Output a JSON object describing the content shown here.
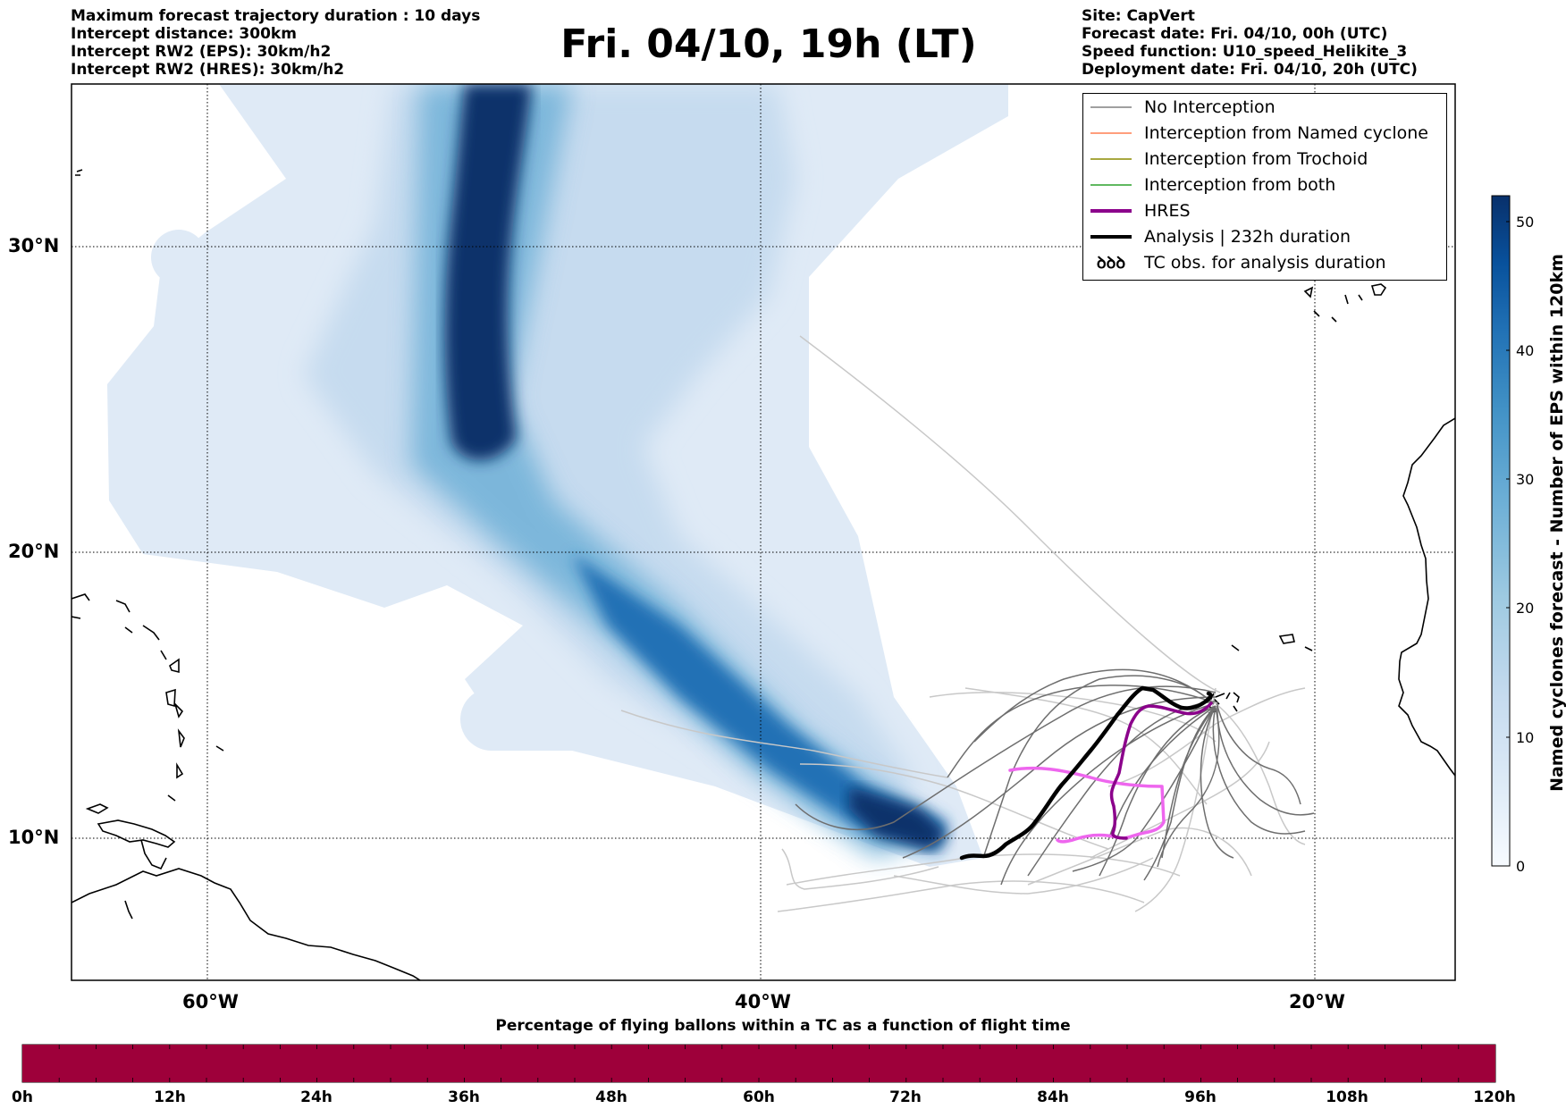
{
  "header_left": [
    "Maximum forecast trajectory duration : 10 days",
    "Intercept distance: 300km",
    "Intercept RW2 (EPS):  30km/h2",
    "Intercept RW2 (HRES): 30km/h2"
  ],
  "title": "Fri. 04/10, 19h (LT)",
  "header_right": [
    "Site: CapVert",
    "Forecast date: Fri. 04/10, 00h (UTC)",
    "Speed function: U10_speed_Helikite_3",
    "Deployment date: Fri. 04/10, 20h (UTC)"
  ],
  "legend": [
    {
      "label": "No Interception",
      "color": "#808080",
      "style": "thin"
    },
    {
      "label": "Interception from Named cyclone",
      "color": "#ff7f50",
      "style": "thin"
    },
    {
      "label": "Interception from Trochoid",
      "color": "#8b8b00",
      "style": "thin"
    },
    {
      "label": "Interception from both",
      "color": "#2ca02c",
      "style": "thin"
    },
    {
      "label": "HRES",
      "color": "#8b008b",
      "style": "thick"
    },
    {
      "label": "Analysis | 232h duration",
      "color": "#000000",
      "style": "thick"
    },
    {
      "label": "TC obs. for analysis duration",
      "color": "#000000",
      "style": "symbol",
      "symbol": "ꝺꝺꝺ"
    }
  ],
  "map": {
    "lat_labels": [
      "30°N",
      "20°N",
      "10°N"
    ],
    "lon_labels": [
      "60°W",
      "40°W",
      "20°W"
    ]
  },
  "colorbar": {
    "label": "Named cyclones forecast - Number of EPS within 120km",
    "ticks": [
      "0",
      "10",
      "20",
      "30",
      "40",
      "50"
    ],
    "range": [
      0,
      52
    ],
    "colors": [
      "#f7fbff",
      "#deebf7",
      "#c6dbef",
      "#9ecae1",
      "#6baed6",
      "#4292c6",
      "#2171b5",
      "#08519c",
      "#08306b"
    ]
  },
  "timeline": {
    "title": "Percentage of flying ballons within a TC as a function of flight time",
    "ticks": [
      "0h",
      "12h",
      "24h",
      "36h",
      "48h",
      "60h",
      "72h",
      "84h",
      "96h",
      "108h",
      "120h"
    ],
    "fill_color": "#9e003a",
    "fill_fraction": 1.0
  }
}
